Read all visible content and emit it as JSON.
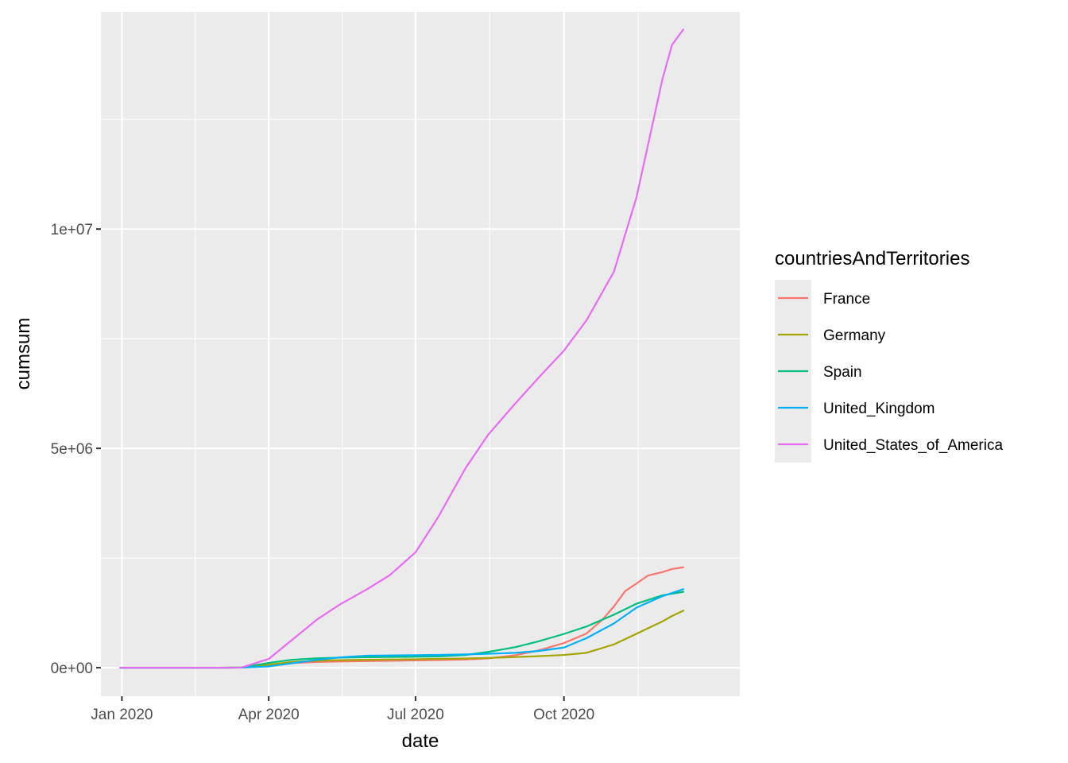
{
  "chart_data": {
    "type": "line",
    "title": "",
    "xlabel": "date",
    "ylabel": "cumsum",
    "x_ticks": [
      {
        "date": "2020-01-01",
        "label": "Jan 2020"
      },
      {
        "date": "2020-04-01",
        "label": "Apr 2020"
      },
      {
        "date": "2020-07-01",
        "label": "Jul 2020"
      },
      {
        "date": "2020-10-01",
        "label": "Oct 2020"
      }
    ],
    "y_ticks": [
      {
        "value": 0,
        "label": "0e+00"
      },
      {
        "value": 5000000,
        "label": "5e+06"
      },
      {
        "value": 10000000,
        "label": "1e+07"
      }
    ],
    "xlim": [
      "2019-12-19",
      "2021-01-18"
    ],
    "ylim": [
      -650000,
      14950000
    ],
    "grid": true,
    "background": "#ebebeb",
    "legend": {
      "title": "countriesAndTerritories",
      "placement": "right"
    },
    "series": [
      {
        "name": "France",
        "color": "#F8766D",
        "points": [
          [
            "2019-12-31",
            0
          ],
          [
            "2020-03-01",
            130
          ],
          [
            "2020-03-15",
            5400
          ],
          [
            "2020-04-01",
            57000
          ],
          [
            "2020-04-15",
            107000
          ],
          [
            "2020-05-01",
            130000
          ],
          [
            "2020-05-15",
            142000
          ],
          [
            "2020-06-01",
            152000
          ],
          [
            "2020-07-01",
            166000
          ],
          [
            "2020-07-15",
            173000
          ],
          [
            "2020-08-01",
            187000
          ],
          [
            "2020-08-15",
            212000
          ],
          [
            "2020-09-01",
            287000
          ],
          [
            "2020-09-15",
            390000
          ],
          [
            "2020-10-01",
            563000
          ],
          [
            "2020-10-15",
            780000
          ],
          [
            "2020-10-25",
            1100000
          ],
          [
            "2020-11-01",
            1400000
          ],
          [
            "2020-11-08",
            1750000
          ],
          [
            "2020-11-15",
            1920000
          ],
          [
            "2020-11-22",
            2100000
          ],
          [
            "2020-12-01",
            2180000
          ],
          [
            "2020-12-07",
            2250000
          ],
          [
            "2020-12-14",
            2290000
          ]
        ]
      },
      {
        "name": "Germany",
        "color": "#A3A500",
        "points": [
          [
            "2019-12-31",
            0
          ],
          [
            "2020-03-01",
            130
          ],
          [
            "2020-03-15",
            4800
          ],
          [
            "2020-04-01",
            68000
          ],
          [
            "2020-04-15",
            130000
          ],
          [
            "2020-05-01",
            161000
          ],
          [
            "2020-05-15",
            172000
          ],
          [
            "2020-06-01",
            181000
          ],
          [
            "2020-07-01",
            194000
          ],
          [
            "2020-08-01",
            210000
          ],
          [
            "2020-08-15",
            223000
          ],
          [
            "2020-09-01",
            243000
          ],
          [
            "2020-09-15",
            262000
          ],
          [
            "2020-10-01",
            291000
          ],
          [
            "2020-10-15",
            340000
          ],
          [
            "2020-11-01",
            532000
          ],
          [
            "2020-11-15",
            774000
          ],
          [
            "2020-12-01",
            1055000
          ],
          [
            "2020-12-07",
            1180000
          ],
          [
            "2020-12-14",
            1300000
          ]
        ]
      },
      {
        "name": "Spain",
        "color": "#00BF7D",
        "points": [
          [
            "2019-12-31",
            0
          ],
          [
            "2020-03-01",
            80
          ],
          [
            "2020-03-15",
            6000
          ],
          [
            "2020-04-01",
            110000
          ],
          [
            "2020-04-15",
            180000
          ],
          [
            "2020-05-01",
            215000
          ],
          [
            "2020-05-15",
            230000
          ],
          [
            "2020-06-01",
            240000
          ],
          [
            "2020-07-01",
            250000
          ],
          [
            "2020-07-15",
            257000
          ],
          [
            "2020-08-01",
            290000
          ],
          [
            "2020-08-15",
            360000
          ],
          [
            "2020-09-01",
            470000
          ],
          [
            "2020-09-15",
            600000
          ],
          [
            "2020-10-01",
            770000
          ],
          [
            "2020-10-15",
            940000
          ],
          [
            "2020-11-01",
            1210000
          ],
          [
            "2020-11-15",
            1460000
          ],
          [
            "2020-12-01",
            1650000
          ],
          [
            "2020-12-14",
            1730000
          ]
        ]
      },
      {
        "name": "United_Kingdom",
        "color": "#00B0F6",
        "points": [
          [
            "2019-12-31",
            0
          ],
          [
            "2020-03-01",
            30
          ],
          [
            "2020-03-15",
            1400
          ],
          [
            "2020-04-01",
            30000
          ],
          [
            "2020-04-15",
            100000
          ],
          [
            "2020-05-01",
            180000
          ],
          [
            "2020-05-15",
            235000
          ],
          [
            "2020-06-01",
            275000
          ],
          [
            "2020-07-01",
            285000
          ],
          [
            "2020-07-15",
            292000
          ],
          [
            "2020-08-01",
            303000
          ],
          [
            "2020-08-15",
            318000
          ],
          [
            "2020-09-01",
            340000
          ],
          [
            "2020-09-15",
            380000
          ],
          [
            "2020-10-01",
            460000
          ],
          [
            "2020-10-15",
            675000
          ],
          [
            "2020-11-01",
            1010000
          ],
          [
            "2020-11-15",
            1370000
          ],
          [
            "2020-12-01",
            1630000
          ],
          [
            "2020-12-14",
            1790000
          ]
        ]
      },
      {
        "name": "United_States_of_America",
        "color": "#E76BF3",
        "points": [
          [
            "2019-12-31",
            0
          ],
          [
            "2020-03-01",
            75
          ],
          [
            "2020-03-15",
            3500
          ],
          [
            "2020-04-01",
            200000
          ],
          [
            "2020-04-15",
            620000
          ],
          [
            "2020-05-01",
            1100000
          ],
          [
            "2020-05-15",
            1440000
          ],
          [
            "2020-06-01",
            1790000
          ],
          [
            "2020-06-15",
            2110000
          ],
          [
            "2020-07-01",
            2630000
          ],
          [
            "2020-07-15",
            3430000
          ],
          [
            "2020-08-01",
            4550000
          ],
          [
            "2020-08-15",
            5310000
          ],
          [
            "2020-09-01",
            6030000
          ],
          [
            "2020-09-15",
            6600000
          ],
          [
            "2020-10-01",
            7230000
          ],
          [
            "2020-10-15",
            7920000
          ],
          [
            "2020-11-01",
            9030000
          ],
          [
            "2020-11-15",
            10730000
          ],
          [
            "2020-12-01",
            13410000
          ],
          [
            "2020-12-07",
            14200000
          ],
          [
            "2020-12-14",
            14550000
          ]
        ]
      }
    ]
  }
}
